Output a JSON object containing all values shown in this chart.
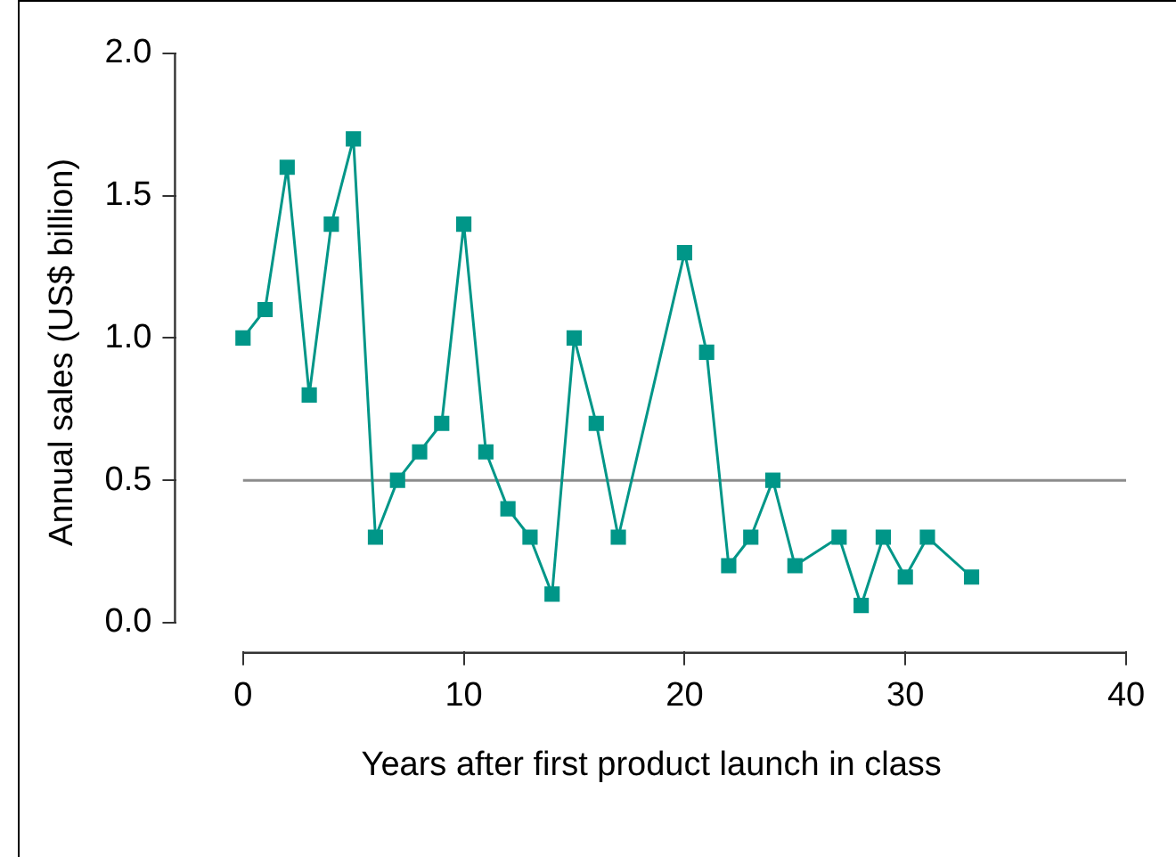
{
  "chart_data": {
    "type": "line",
    "xlabel": "Years after first product launch in class",
    "ylabel": "Annual sales (US$ billion)",
    "series": [
      {
        "color": "#009688",
        "x": [
          0,
          1,
          2,
          3,
          4,
          5,
          6,
          7,
          8,
          9,
          10,
          11,
          12,
          13,
          14,
          15,
          16,
          17,
          20,
          21,
          22,
          23,
          24,
          25,
          27,
          28,
          29,
          30,
          31,
          33
        ],
        "values": [
          1.0,
          1.1,
          1.6,
          0.8,
          1.4,
          1.7,
          0.3,
          0.5,
          0.6,
          0.7,
          1.4,
          0.6,
          0.4,
          0.3,
          0.1,
          1.0,
          0.7,
          0.3,
          1.3,
          0.95,
          0.2,
          0.3,
          0.5,
          0.2,
          0.3,
          0.06,
          0.3,
          0.16,
          0.3,
          0.16
        ]
      }
    ],
    "xlim": [
      -3,
      40
    ],
    "xticks": [
      0,
      10,
      20,
      30,
      40
    ],
    "ylim": [
      -0.1,
      2.0
    ],
    "yticks": [
      {
        "value": 0,
        "label": "0.0"
      },
      0.5,
      {
        "value": 1,
        "label": "1.0"
      },
      1.5,
      {
        "value": 2,
        "label": "2.0"
      }
    ],
    "ref_lines": [
      {
        "axis": "y",
        "value": 0.5,
        "color": "#8c8c8c"
      }
    ],
    "grid": false,
    "legend": false,
    "marker": "square",
    "line_style": "solid"
  }
}
